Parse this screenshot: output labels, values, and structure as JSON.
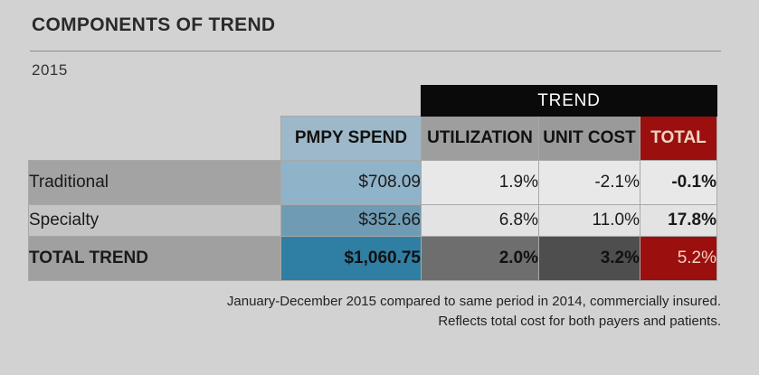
{
  "title": "COMPONENTS OF TREND",
  "year": "2015",
  "chart_data": {
    "type": "table",
    "group_header": "TREND",
    "columns": [
      "PMPY SPEND",
      "UTILIZATION",
      "UNIT COST",
      "TOTAL"
    ],
    "rows": [
      {
        "label": "Traditional",
        "values": [
          "$708.09",
          "1.9%",
          "-2.1%",
          "-0.1%"
        ]
      },
      {
        "label": "Specialty",
        "values": [
          "$352.66",
          "6.8%",
          "11.0%",
          "17.8%"
        ]
      },
      {
        "label": "TOTAL TREND",
        "values": [
          "$1,060.75",
          "2.0%",
          "3.2%",
          "5.2%"
        ]
      }
    ],
    "colors": {
      "total_red": "#9b0f0f",
      "pmpy_blue": "#2f7ea3",
      "band_black": "#0a0a0a"
    }
  },
  "notes": [
    "January-December 2015 compared to same period in 2014, commercially insured.",
    "Reflects total cost for both payers and patients."
  ]
}
